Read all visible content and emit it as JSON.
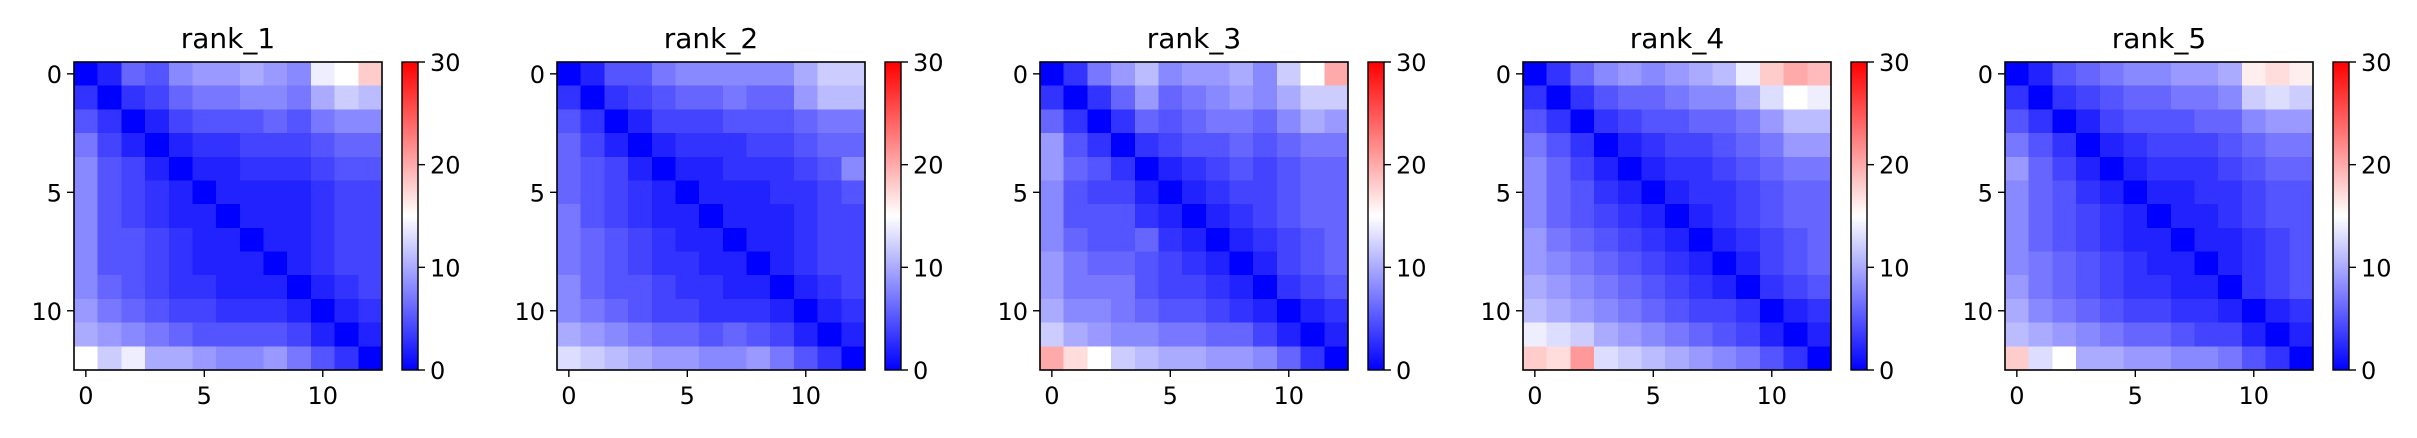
{
  "chart_data": [
    {
      "type": "heatmap",
      "title": "rank_1",
      "colormap": "bwr",
      "vmin": 0,
      "vmax": 30,
      "xticks": [
        0,
        5,
        10
      ],
      "yticks": [
        0,
        5,
        10
      ],
      "colorbar_ticks": [
        0,
        10,
        20,
        30
      ],
      "grid": false,
      "matrix": [
        [
          0,
          2,
          6,
          5,
          8,
          9,
          9,
          10,
          9,
          8,
          14,
          15,
          18
        ],
        [
          3,
          0,
          3,
          4,
          6,
          7,
          7,
          8,
          8,
          7,
          10,
          12,
          11
        ],
        [
          5,
          3,
          0,
          2,
          4,
          5,
          5,
          5,
          6,
          5,
          7,
          8,
          8
        ],
        [
          7,
          4,
          2,
          0,
          2,
          3,
          3,
          4,
          4,
          4,
          5,
          6,
          6
        ],
        [
          8,
          5,
          4,
          2,
          0,
          2,
          2,
          3,
          3,
          3,
          4,
          5,
          5
        ],
        [
          8,
          5,
          4,
          3,
          2,
          0,
          2,
          2,
          2,
          2,
          3,
          4,
          4
        ],
        [
          8,
          5,
          4,
          3,
          2,
          2,
          0,
          2,
          2,
          2,
          3,
          4,
          4
        ],
        [
          8,
          5,
          5,
          4,
          3,
          2,
          2,
          0,
          2,
          2,
          3,
          4,
          4
        ],
        [
          8,
          5,
          5,
          4,
          3,
          2,
          2,
          2,
          0,
          2,
          3,
          4,
          4
        ],
        [
          8,
          6,
          5,
          4,
          3,
          3,
          2,
          2,
          2,
          0,
          2,
          3,
          4
        ],
        [
          9,
          7,
          6,
          5,
          4,
          4,
          3,
          3,
          3,
          2,
          0,
          2,
          3
        ],
        [
          10,
          9,
          8,
          7,
          6,
          5,
          5,
          5,
          5,
          4,
          2,
          0,
          2
        ],
        [
          15,
          12,
          14,
          10,
          10,
          9,
          8,
          8,
          9,
          7,
          5,
          3,
          0
        ]
      ]
    },
    {
      "type": "heatmap",
      "title": "rank_2",
      "colormap": "bwr",
      "vmin": 0,
      "vmax": 30,
      "xticks": [
        0,
        5,
        10
      ],
      "yticks": [
        0,
        5,
        10
      ],
      "colorbar_ticks": [
        0,
        10,
        20,
        30
      ],
      "grid": false,
      "matrix": [
        [
          0,
          2,
          5,
          5,
          7,
          8,
          8,
          8,
          8,
          8,
          10,
          12,
          12
        ],
        [
          3,
          0,
          3,
          4,
          5,
          6,
          6,
          7,
          6,
          6,
          9,
          11,
          11
        ],
        [
          5,
          3,
          0,
          2,
          4,
          4,
          4,
          5,
          5,
          5,
          6,
          7,
          7
        ],
        [
          6,
          4,
          2,
          0,
          2,
          3,
          3,
          3,
          4,
          4,
          5,
          6,
          6
        ],
        [
          6,
          5,
          4,
          2,
          0,
          2,
          2,
          3,
          3,
          3,
          4,
          5,
          8
        ],
        [
          6,
          5,
          4,
          3,
          2,
          0,
          2,
          2,
          2,
          3,
          3,
          4,
          5
        ],
        [
          7,
          5,
          4,
          3,
          2,
          2,
          0,
          2,
          2,
          2,
          3,
          4,
          4
        ],
        [
          7,
          6,
          5,
          4,
          3,
          2,
          2,
          0,
          2,
          2,
          3,
          4,
          4
        ],
        [
          7,
          6,
          5,
          4,
          3,
          3,
          2,
          2,
          0,
          2,
          3,
          4,
          4
        ],
        [
          8,
          6,
          5,
          5,
          4,
          3,
          3,
          2,
          2,
          0,
          2,
          3,
          4
        ],
        [
          8,
          7,
          6,
          5,
          4,
          4,
          3,
          3,
          3,
          2,
          0,
          2,
          3
        ],
        [
          10,
          9,
          8,
          7,
          6,
          6,
          5,
          6,
          5,
          4,
          2,
          0,
          2
        ],
        [
          13,
          12,
          11,
          10,
          9,
          9,
          8,
          8,
          9,
          7,
          5,
          3,
          0
        ]
      ]
    },
    {
      "type": "heatmap",
      "title": "rank_3",
      "colormap": "bwr",
      "vmin": 0,
      "vmax": 30,
      "xticks": [
        0,
        5,
        10
      ],
      "yticks": [
        0,
        5,
        10
      ],
      "colorbar_ticks": [
        0,
        10,
        20,
        30
      ],
      "grid": false,
      "matrix": [
        [
          0,
          3,
          7,
          9,
          11,
          8,
          9,
          9,
          10,
          8,
          12,
          15,
          20
        ],
        [
          3,
          0,
          3,
          6,
          9,
          6,
          7,
          8,
          9,
          8,
          10,
          12,
          12
        ],
        [
          6,
          3,
          0,
          3,
          6,
          5,
          6,
          7,
          7,
          6,
          8,
          10,
          9
        ],
        [
          9,
          5,
          3,
          0,
          3,
          4,
          5,
          5,
          6,
          5,
          6,
          7,
          7
        ],
        [
          9,
          6,
          5,
          3,
          0,
          2,
          3,
          4,
          5,
          4,
          5,
          6,
          6
        ],
        [
          8,
          5,
          4,
          4,
          2,
          0,
          2,
          3,
          4,
          4,
          5,
          6,
          6
        ],
        [
          8,
          5,
          5,
          5,
          3,
          2,
          0,
          2,
          3,
          4,
          5,
          6,
          6
        ],
        [
          8,
          6,
          5,
          5,
          6,
          3,
          2,
          0,
          2,
          3,
          4,
          5,
          6
        ],
        [
          9,
          7,
          6,
          6,
          5,
          4,
          3,
          2,
          0,
          2,
          4,
          5,
          6
        ],
        [
          9,
          7,
          7,
          7,
          5,
          4,
          4,
          3,
          2,
          0,
          3,
          4,
          5
        ],
        [
          10,
          8,
          8,
          7,
          6,
          5,
          5,
          4,
          3,
          2,
          0,
          2,
          3
        ],
        [
          12,
          10,
          9,
          8,
          8,
          7,
          7,
          6,
          6,
          4,
          2,
          0,
          2
        ],
        [
          20,
          17,
          15,
          12,
          11,
          10,
          10,
          9,
          9,
          8,
          6,
          3,
          0
        ]
      ]
    },
    {
      "type": "heatmap",
      "title": "rank_4",
      "colormap": "bwr",
      "vmin": 0,
      "vmax": 30,
      "xticks": [
        0,
        5,
        10
      ],
      "yticks": [
        0,
        5,
        10
      ],
      "colorbar_ticks": [
        0,
        10,
        20,
        30
      ],
      "grid": false,
      "matrix": [
        [
          0,
          3,
          6,
          8,
          9,
          8,
          9,
          10,
          11,
          14,
          18,
          20,
          19
        ],
        [
          3,
          0,
          3,
          5,
          6,
          6,
          7,
          8,
          8,
          10,
          13,
          15,
          14
        ],
        [
          5,
          3,
          0,
          3,
          4,
          5,
          5,
          6,
          6,
          7,
          9,
          11,
          11
        ],
        [
          7,
          5,
          3,
          0,
          2,
          3,
          4,
          4,
          5,
          6,
          7,
          9,
          9
        ],
        [
          8,
          6,
          4,
          2,
          0,
          2,
          3,
          3,
          4,
          5,
          6,
          7,
          7
        ],
        [
          8,
          6,
          5,
          3,
          2,
          0,
          2,
          3,
          3,
          4,
          5,
          6,
          6
        ],
        [
          8,
          6,
          5,
          4,
          3,
          2,
          0,
          2,
          3,
          4,
          5,
          6,
          6
        ],
        [
          9,
          7,
          6,
          5,
          4,
          3,
          2,
          0,
          2,
          3,
          4,
          5,
          6
        ],
        [
          9,
          8,
          7,
          6,
          5,
          4,
          3,
          2,
          0,
          2,
          4,
          5,
          6
        ],
        [
          10,
          9,
          8,
          7,
          6,
          5,
          4,
          3,
          2,
          0,
          3,
          4,
          5
        ],
        [
          11,
          10,
          9,
          8,
          7,
          6,
          5,
          4,
          4,
          3,
          0,
          2,
          3
        ],
        [
          14,
          13,
          12,
          10,
          9,
          8,
          7,
          6,
          5,
          4,
          2,
          0,
          2
        ],
        [
          18,
          17,
          21,
          13,
          12,
          11,
          10,
          9,
          8,
          7,
          5,
          3,
          0
        ]
      ]
    },
    {
      "type": "heatmap",
      "title": "rank_5",
      "colormap": "bwr",
      "vmin": 0,
      "vmax": 30,
      "xticks": [
        0,
        5,
        10
      ],
      "yticks": [
        0,
        5,
        10
      ],
      "colorbar_ticks": [
        0,
        10,
        20,
        30
      ],
      "grid": false,
      "matrix": [
        [
          0,
          2,
          5,
          6,
          7,
          8,
          8,
          9,
          9,
          10,
          16,
          17,
          16
        ],
        [
          3,
          0,
          3,
          4,
          5,
          6,
          6,
          7,
          7,
          8,
          12,
          13,
          12
        ],
        [
          5,
          3,
          0,
          2,
          4,
          5,
          5,
          5,
          6,
          6,
          8,
          9,
          9
        ],
        [
          7,
          5,
          3,
          0,
          2,
          3,
          4,
          4,
          4,
          5,
          6,
          7,
          7
        ],
        [
          9,
          6,
          4,
          2,
          0,
          2,
          3,
          3,
          3,
          4,
          5,
          6,
          6
        ],
        [
          8,
          6,
          5,
          3,
          2,
          0,
          2,
          2,
          3,
          3,
          4,
          5,
          5
        ],
        [
          8,
          6,
          5,
          4,
          3,
          2,
          0,
          2,
          2,
          3,
          4,
          5,
          5
        ],
        [
          8,
          6,
          5,
          4,
          3,
          2,
          2,
          0,
          2,
          2,
          3,
          4,
          5
        ],
        [
          8,
          7,
          6,
          5,
          4,
          3,
          2,
          2,
          0,
          2,
          3,
          4,
          5
        ],
        [
          9,
          7,
          6,
          5,
          4,
          3,
          3,
          2,
          2,
          0,
          3,
          4,
          5
        ],
        [
          10,
          8,
          7,
          6,
          5,
          4,
          4,
          3,
          3,
          2,
          0,
          2,
          3
        ],
        [
          11,
          10,
          9,
          8,
          7,
          6,
          6,
          5,
          4,
          4,
          2,
          0,
          2
        ],
        [
          18,
          13,
          15,
          10,
          10,
          9,
          9,
          8,
          8,
          7,
          5,
          3,
          0
        ]
      ]
    }
  ]
}
